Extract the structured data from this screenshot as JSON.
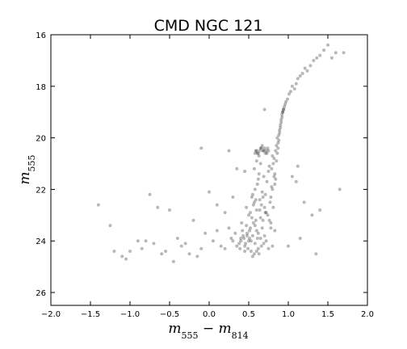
{
  "chart_data": {
    "type": "scatter",
    "title": "CMD NGC 121",
    "xlabel": "m555 − m814",
    "ylabel": "m555",
    "xlim": [
      -2.0,
      2.0
    ],
    "ylim": [
      26.5,
      16.0
    ],
    "y_inverted": true,
    "grid": false,
    "legend": "none",
    "x_ticks": [
      -2.0,
      -1.5,
      -1.0,
      -0.5,
      0.0,
      0.5,
      1.0,
      1.5,
      2.0
    ],
    "x_tick_labels": [
      "−2.0",
      "−1.5",
      "−1.0",
      "−0.5",
      "0.0",
      "0.5",
      "1.0",
      "1.5",
      "2.0"
    ],
    "y_ticks": [
      16,
      18,
      20,
      22,
      24,
      26
    ],
    "y_tick_labels": [
      "16",
      "18",
      "20",
      "22",
      "24",
      "26"
    ],
    "point_color": "#000000",
    "series": [
      {
        "x": [
          0.55,
          0.5,
          0.6,
          0.45,
          0.65,
          0.52,
          0.58,
          0.48,
          0.62,
          0.4,
          0.7,
          0.56,
          0.44,
          0.66,
          0.53,
          0.47,
          0.59,
          0.38,
          0.72,
          0.51,
          0.57,
          0.43,
          0.67,
          0.54,
          0.49,
          0.61,
          0.35,
          0.75,
          0.52,
          0.58,
          0.46,
          0.64,
          0.55,
          0.42,
          0.68,
          0.5,
          0.6,
          0.33,
          0.78,
          0.56,
          0.53,
          0.47,
          0.63,
          0.41,
          0.69,
          0.57,
          0.3,
          0.8,
          0.51,
          0.59,
          0.45,
          0.65,
          0.54,
          0.39,
          0.71,
          0.48,
          0.62,
          0.28,
          0.83,
          0.55,
          0.6,
          0.58,
          0.62,
          0.64,
          0.57,
          0.66,
          0.6,
          0.68,
          0.63,
          0.7,
          0.65,
          0.72,
          0.61,
          0.74,
          0.67,
          0.76,
          0.69,
          0.78,
          0.71,
          0.73,
          0.75,
          0.77,
          0.79,
          0.81,
          0.76,
          0.8,
          0.82,
          0.78,
          0.84,
          0.8,
          0.83,
          0.79,
          0.85,
          0.81,
          0.86,
          0.82,
          0.84,
          0.87,
          0.83,
          0.85,
          0.88,
          0.86,
          0.89,
          0.87,
          0.9,
          0.88,
          0.91,
          0.89,
          0.92,
          0.9,
          0.93,
          0.91,
          0.94,
          0.92,
          0.95,
          0.93,
          0.96,
          0.94,
          0.97,
          0.99,
          1.01,
          1.03,
          1.05,
          1.08,
          1.1,
          1.12,
          1.15,
          1.18,
          1.21,
          1.24,
          1.28,
          1.32,
          1.36,
          1.4,
          1.45,
          1.5,
          1.55,
          1.6,
          0.58,
          0.6,
          0.62,
          0.64,
          0.66,
          0.68,
          0.7,
          0.72,
          0.74,
          0.61,
          0.65,
          0.69,
          0.73,
          0.63,
          0.67,
          0.71,
          0.59,
          0.75,
          0.4,
          0.25,
          0.15,
          0.05,
          -0.1,
          -0.25,
          -0.4,
          -0.55,
          -0.7,
          -0.85,
          -1.0,
          -1.1,
          -1.2,
          0.1,
          0.2,
          -0.05,
          -0.3,
          -0.6,
          -0.9,
          -0.15,
          0.3,
          0.2,
          0.1,
          -0.2,
          -0.5,
          -0.75,
          -1.4,
          -1.25,
          1.05,
          1.1,
          1.2,
          1.3,
          1.4,
          1.65,
          1.0,
          1.15,
          0.35,
          -0.35,
          -0.8,
          1.7,
          -0.1,
          0.25,
          0.45,
          0.0,
          1.12,
          -0.45,
          -1.05,
          1.35,
          0.7,
          -0.65
        ],
        "y": [
          23.8,
          24.0,
          23.6,
          24.2,
          23.9,
          23.5,
          24.1,
          23.7,
          24.3,
          24.0,
          23.8,
          23.3,
          23.9,
          24.2,
          24.4,
          23.4,
          23.2,
          24.1,
          24.0,
          23.6,
          24.5,
          23.8,
          23.5,
          23.1,
          24.3,
          23.9,
          24.2,
          24.3,
          22.9,
          23.4,
          24.1,
          22.8,
          24.6,
          23.6,
          23.2,
          23.0,
          24.4,
          23.7,
          23.5,
          22.6,
          24.0,
          22.7,
          24.5,
          23.3,
          24.1,
          22.5,
          24.0,
          24.2,
          23.9,
          22.4,
          24.4,
          23.1,
          22.3,
          24.3,
          22.9,
          23.8,
          23.7,
          23.9,
          23.6,
          22.2,
          22.8,
          22.0,
          21.6,
          22.4,
          21.2,
          22.6,
          20.9,
          22.3,
          21.4,
          22.7,
          21.0,
          22.9,
          21.8,
          23.0,
          22.1,
          23.2,
          21.5,
          23.3,
          22.2,
          21.7,
          21.3,
          22.5,
          21.9,
          22.7,
          21.1,
          20.7,
          21.5,
          22.3,
          20.5,
          22.0,
          21.8,
          21.2,
          20.3,
          21.0,
          20.0,
          20.8,
          21.6,
          20.2,
          21.4,
          20.9,
          19.9,
          20.6,
          19.7,
          20.4,
          19.5,
          20.1,
          19.3,
          19.8,
          19.1,
          19.6,
          19.0,
          19.4,
          18.9,
          19.2,
          18.8,
          19.0,
          18.7,
          18.9,
          18.6,
          18.5,
          18.3,
          18.2,
          18.0,
          18.1,
          17.9,
          17.7,
          17.6,
          17.5,
          17.3,
          17.4,
          17.2,
          17.0,
          16.9,
          16.8,
          16.6,
          16.4,
          16.9,
          16.7,
          20.6,
          20.5,
          20.6,
          20.5,
          20.4,
          20.5,
          20.4,
          20.5,
          20.4,
          20.6,
          20.4,
          20.5,
          20.6,
          20.7,
          20.3,
          20.6,
          20.5,
          20.5,
          23.9,
          23.5,
          24.2,
          24.0,
          24.3,
          24.5,
          23.9,
          24.4,
          24.1,
          24.3,
          24.4,
          24.6,
          24.4,
          23.6,
          24.3,
          23.7,
          24.1,
          24.5,
          24.0,
          24.6,
          22.3,
          22.9,
          22.6,
          23.2,
          22.8,
          22.2,
          22.6,
          23.4,
          21.5,
          21.7,
          22.5,
          23.0,
          22.8,
          22.0,
          24.2,
          23.9,
          21.2,
          24.2,
          24.0,
          16.7,
          20.4,
          20.5,
          21.3,
          22.1,
          21.1,
          24.8,
          24.7,
          24.5,
          18.9,
          22.7
        ]
      }
    ]
  }
}
